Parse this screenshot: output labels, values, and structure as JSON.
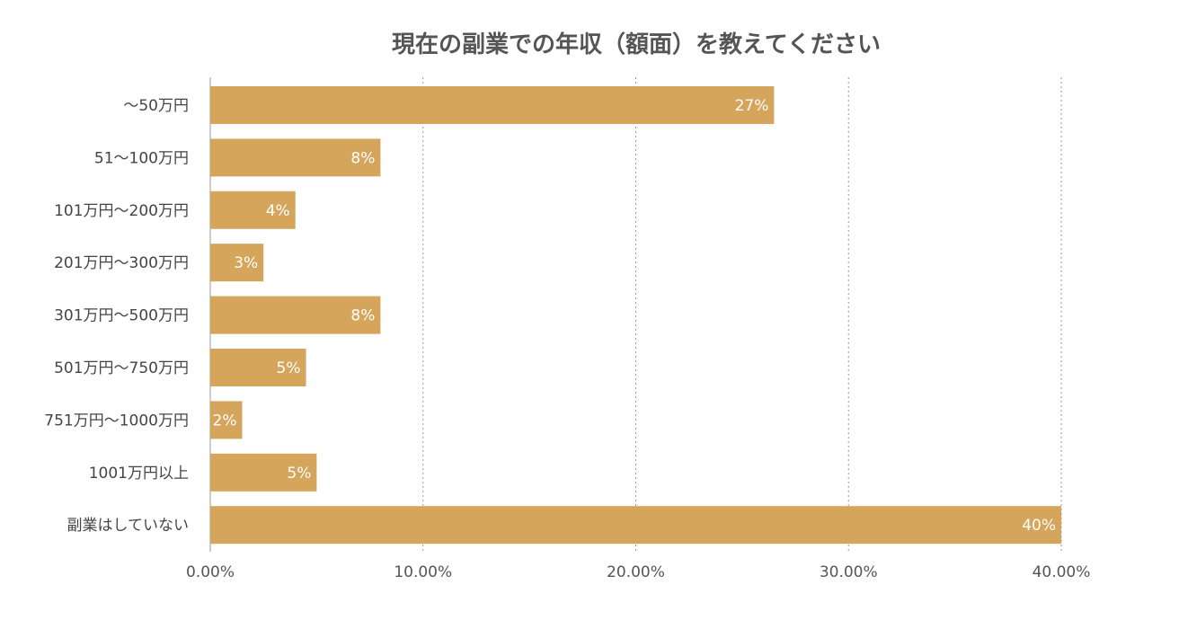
{
  "chart_data": {
    "type": "bar",
    "orientation": "horizontal",
    "title": "現在の副業での年収（額面）を教えてください",
    "categories": [
      "〜50万円",
      "51〜100万円",
      "101万円〜200万円",
      "201万円〜300万円",
      "301万円〜500万円",
      "501万円〜750万円",
      "751万円〜1000万円",
      "1001万円以上",
      "副業はしていない"
    ],
    "values": [
      26.5,
      8.0,
      4.0,
      2.5,
      8.0,
      4.5,
      1.5,
      5.0,
      40.0
    ],
    "data_labels": [
      "27%",
      "8%",
      "4%",
      "3%",
      "8%",
      "5%",
      "2%",
      "5%",
      "40%"
    ],
    "xlim": [
      0,
      40
    ],
    "xticks": [
      0,
      10,
      20,
      30,
      40
    ],
    "xtick_labels": [
      "0.00%",
      "10.00%",
      "20.00%",
      "30.00%",
      "40.00%"
    ],
    "xlabel": "",
    "ylabel": "",
    "grid": true,
    "legend": "none",
    "bar_color": "#D4A55A",
    "label_color": "#FFFFFF",
    "grid_color": "#999999",
    "text_color": "#444444"
  }
}
